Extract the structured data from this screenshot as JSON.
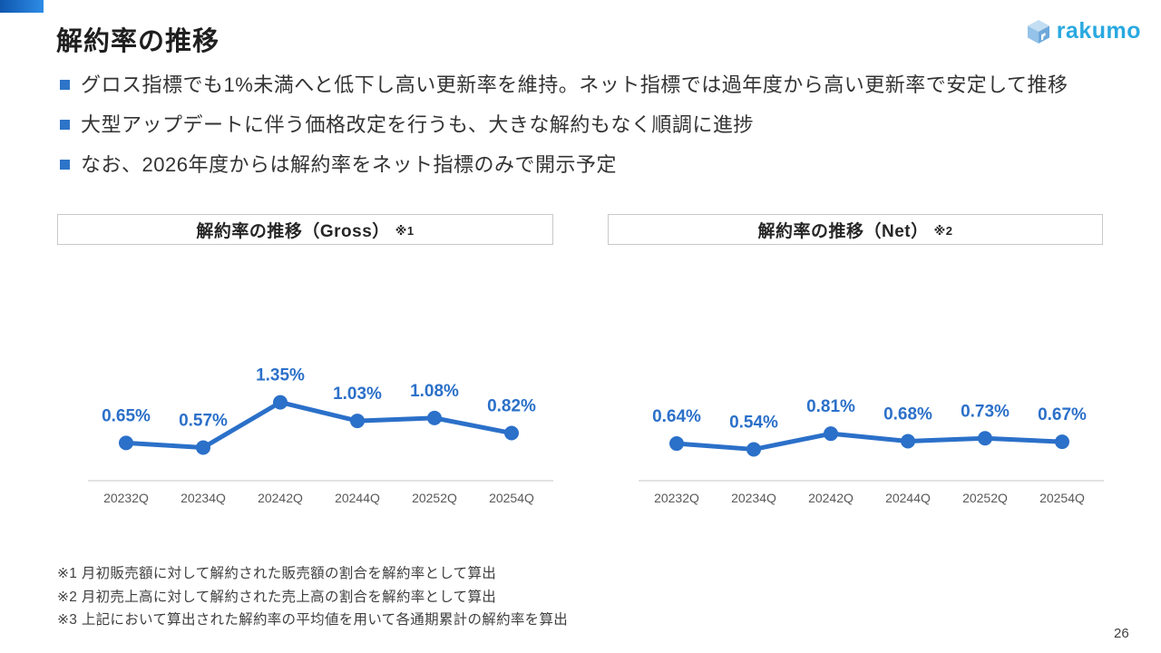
{
  "page": {
    "title": "解約率の推移",
    "page_number": "26"
  },
  "logo": {
    "text": "rakumo"
  },
  "bullets": [
    "グロス指標でも1%未満へと低下し高い更新率を維持。ネット指標では過年度から高い更新率で安定して推移",
    "大型アップデートに伴う価格改定を行うも、大きな解約もなく順調に進捗",
    "なお、2026年度からは解約率をネット指標のみで開示予定"
  ],
  "chart_data": [
    {
      "type": "line",
      "title": "解約率の推移（Gross）",
      "title_note": "※1",
      "categories": [
        "20232Q",
        "20234Q",
        "20242Q",
        "20244Q",
        "20252Q",
        "20254Q"
      ],
      "values": [
        0.65,
        0.57,
        1.35,
        1.03,
        1.08,
        0.82
      ],
      "labels": [
        "0.65%",
        "0.57%",
        "1.35%",
        "1.03%",
        "1.08%",
        "0.82%"
      ],
      "unit": "%",
      "ylim": [
        0,
        2.0
      ],
      "grid": false,
      "legend": "none",
      "line_color": "#2b70c9",
      "axis_color": "#d9d9d9"
    },
    {
      "type": "line",
      "title": "解約率の推移（Net）",
      "title_note": "※2",
      "categories": [
        "20232Q",
        "20234Q",
        "20242Q",
        "20244Q",
        "20252Q",
        "20254Q"
      ],
      "values": [
        0.64,
        0.54,
        0.81,
        0.68,
        0.73,
        0.67
      ],
      "labels": [
        "0.64%",
        "0.54%",
        "0.81%",
        "0.68%",
        "0.73%",
        "0.67%"
      ],
      "unit": "%",
      "ylim": [
        0,
        2.0
      ],
      "grid": false,
      "legend": "none",
      "line_color": "#2b70c9",
      "axis_color": "#d9d9d9"
    }
  ],
  "footnotes": [
    "※1 月初販売額に対して解約された販売額の割合を解約率として算出",
    "※2 月初売上高に対して解約された売上高の割合を解約率として算出",
    "※3 上記において算出された解約率の平均値を用いて各通期累計の解約率を算出"
  ],
  "colors": {
    "accent_blue": "#2b70c9",
    "bullet_blue": "#2e74c8",
    "logo_blue": "#29a9e0",
    "axis_gray": "#d9d9d9",
    "tick_gray": "#595959"
  }
}
